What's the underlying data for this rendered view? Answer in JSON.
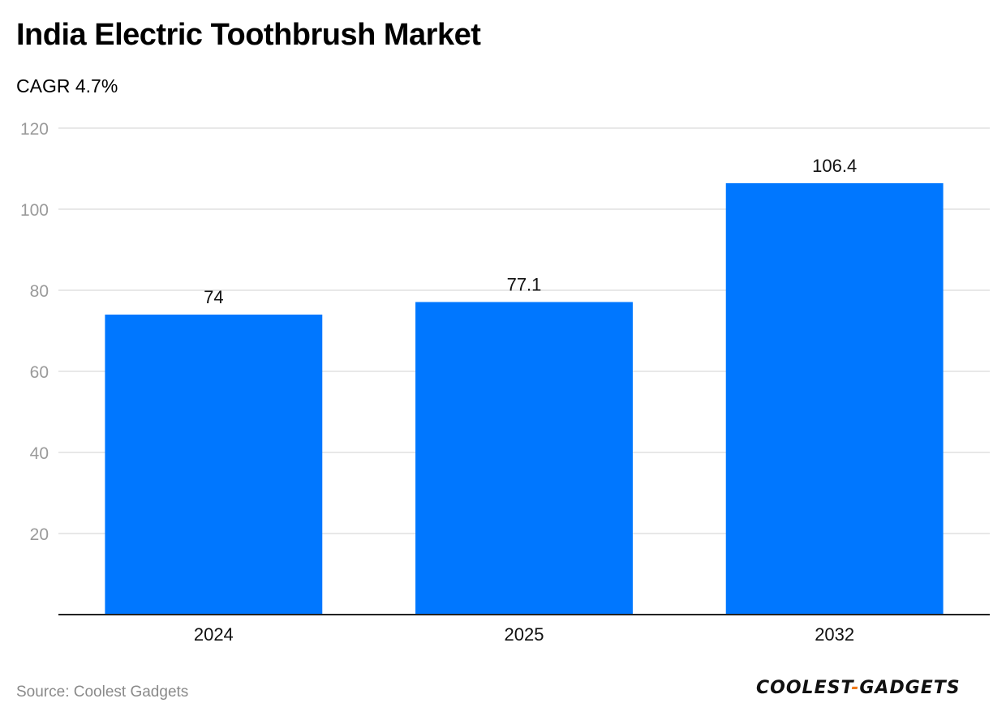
{
  "chart_data": {
    "type": "bar",
    "title": "India Electric Toothbrush Market",
    "subtitle": "CAGR 4.7%",
    "categories": [
      "2024",
      "2025",
      "2032"
    ],
    "values": [
      74,
      77.1,
      106.4
    ],
    "value_labels": [
      "74",
      "77.1",
      "106.4"
    ],
    "ylim": [
      0,
      120
    ],
    "yticks": [
      20,
      40,
      60,
      80,
      100,
      120
    ],
    "xlabel": "",
    "ylabel": "",
    "grid": true,
    "bar_color": "#0077ff",
    "grid_color": "#e0e0e0",
    "tick_label_color": "#9a9a9a"
  },
  "footer": {
    "source": "Source: Coolest Gadgets",
    "logo_part1": "COOLEST",
    "logo_dash": "-",
    "logo_part2": "GADGETS",
    "logo_dash_color": "#f07a1a"
  }
}
